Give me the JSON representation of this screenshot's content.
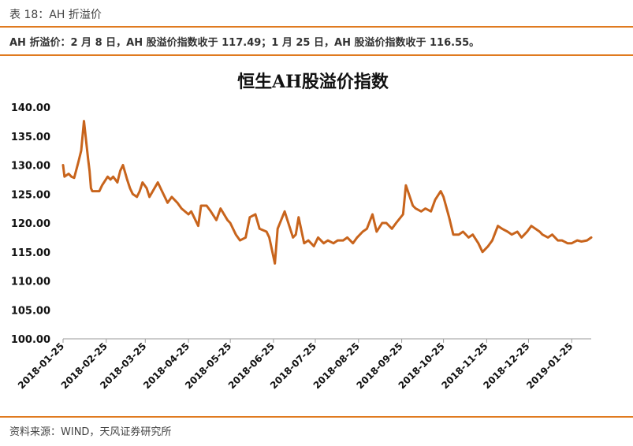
{
  "header": {
    "table_label": "表 18：AH 折溢价",
    "summary": "AH 折溢价：2 月 8 日，AH 股溢价指数收于 117.49；1 月 25 日，AH 股溢价指数收于 116.55。"
  },
  "footer": {
    "source": "资料来源：WIND，天风证券研究所"
  },
  "colors": {
    "accent": "#e07a1f",
    "line": "#c8641c"
  },
  "chart_data": {
    "type": "line",
    "title": "恒生AH股溢价指数",
    "xlabel": "",
    "ylabel": "",
    "ylim": [
      100,
      140
    ],
    "yticks": [
      "100.00",
      "105.00",
      "110.00",
      "115.00",
      "120.00",
      "125.00",
      "130.00",
      "135.00",
      "140.00"
    ],
    "xticks": [
      "2018-01-25",
      "2018-02-25",
      "2018-03-25",
      "2018-04-25",
      "2018-05-25",
      "2018-06-25",
      "2018-07-25",
      "2018-08-25",
      "2018-09-25",
      "2018-10-25",
      "2018-11-25",
      "2018-12-25",
      "2019-01-25"
    ],
    "grid": false,
    "legend": "none",
    "series": [
      {
        "x": [
          "2018-01-25",
          "2018-01-26",
          "2018-01-29",
          "2018-01-31",
          "2018-02-02",
          "2018-02-05",
          "2018-02-07",
          "2018-02-09",
          "2018-02-12",
          "2018-02-13",
          "2018-02-14",
          "2018-02-15",
          "2018-02-20",
          "2018-02-22",
          "2018-02-26",
          "2018-02-28",
          "2018-03-02",
          "2018-03-05",
          "2018-03-07",
          "2018-03-09",
          "2018-03-12",
          "2018-03-14",
          "2018-03-16",
          "2018-03-19",
          "2018-03-21",
          "2018-03-23",
          "2018-03-26",
          "2018-03-28",
          "2018-04-03",
          "2018-04-06",
          "2018-04-10",
          "2018-04-13",
          "2018-04-17",
          "2018-04-20",
          "2018-04-25",
          "2018-04-27",
          "2018-05-02",
          "2018-05-04",
          "2018-05-08",
          "2018-05-11",
          "2018-05-15",
          "2018-05-18",
          "2018-05-23",
          "2018-05-25",
          "2018-05-29",
          "2018-06-01",
          "2018-06-05",
          "2018-06-08",
          "2018-06-12",
          "2018-06-15",
          "2018-06-20",
          "2018-06-22",
          "2018-06-26",
          "2018-06-28",
          "2018-07-03",
          "2018-07-05",
          "2018-07-09",
          "2018-07-11",
          "2018-07-13",
          "2018-07-17",
          "2018-07-20",
          "2018-07-24",
          "2018-07-27",
          "2018-07-31",
          "2018-08-03",
          "2018-08-07",
          "2018-08-10",
          "2018-08-14",
          "2018-08-17",
          "2018-08-21",
          "2018-08-24",
          "2018-08-28",
          "2018-08-31",
          "2018-09-04",
          "2018-09-07",
          "2018-09-11",
          "2018-09-14",
          "2018-09-18",
          "2018-09-21",
          "2018-09-26",
          "2018-09-28",
          "2018-10-03",
          "2018-10-05",
          "2018-10-09",
          "2018-10-12",
          "2018-10-16",
          "2018-10-19",
          "2018-10-23",
          "2018-10-25",
          "2018-10-29",
          "2018-11-01",
          "2018-11-05",
          "2018-11-08",
          "2018-11-12",
          "2018-11-15",
          "2018-11-19",
          "2018-11-22",
          "2018-11-26",
          "2018-11-29",
          "2018-12-03",
          "2018-12-06",
          "2018-12-10",
          "2018-12-13",
          "2018-12-17",
          "2018-12-20",
          "2018-12-24",
          "2018-12-27",
          "2019-01-02",
          "2019-01-04",
          "2019-01-08",
          "2019-01-11",
          "2019-01-15",
          "2019-01-18",
          "2019-01-22",
          "2019-01-25",
          "2019-01-29",
          "2019-02-01",
          "2019-02-05",
          "2019-02-08"
        ],
        "values": [
          130.0,
          128.0,
          128.5,
          128.0,
          127.8,
          130.5,
          132.5,
          137.6,
          131.0,
          129.0,
          126.0,
          125.5,
          125.5,
          126.5,
          128.0,
          127.5,
          128.0,
          127.0,
          129.0,
          130.0,
          127.5,
          126.0,
          125.0,
          124.5,
          125.5,
          127.0,
          126.0,
          124.5,
          127.0,
          125.5,
          123.5,
          124.5,
          123.5,
          122.5,
          121.5,
          122.0,
          119.5,
          123.0,
          123.0,
          122.0,
          120.5,
          122.5,
          120.5,
          120.0,
          118.0,
          117.0,
          117.5,
          121.0,
          121.5,
          119.0,
          118.5,
          117.5,
          113.0,
          119.0,
          122.0,
          120.5,
          117.5,
          118.0,
          121.0,
          116.5,
          117.0,
          116.0,
          117.5,
          116.5,
          117.0,
          116.5,
          117.0,
          117.0,
          117.5,
          116.5,
          117.5,
          118.5,
          119.0,
          121.5,
          118.5,
          120.0,
          120.0,
          119.0,
          120.0,
          121.5,
          126.5,
          123.0,
          122.5,
          122.0,
          122.5,
          122.0,
          124.0,
          125.5,
          124.5,
          121.0,
          118.0,
          118.0,
          118.5,
          117.5,
          118.0,
          116.5,
          115.0,
          116.0,
          117.0,
          119.5,
          119.0,
          118.5,
          118.0,
          118.5,
          117.5,
          118.5,
          119.5,
          118.5,
          118.0,
          117.5,
          118.0,
          117.0,
          117.0,
          116.5,
          116.5,
          117.0,
          116.8,
          117.0,
          117.5
        ]
      }
    ]
  }
}
